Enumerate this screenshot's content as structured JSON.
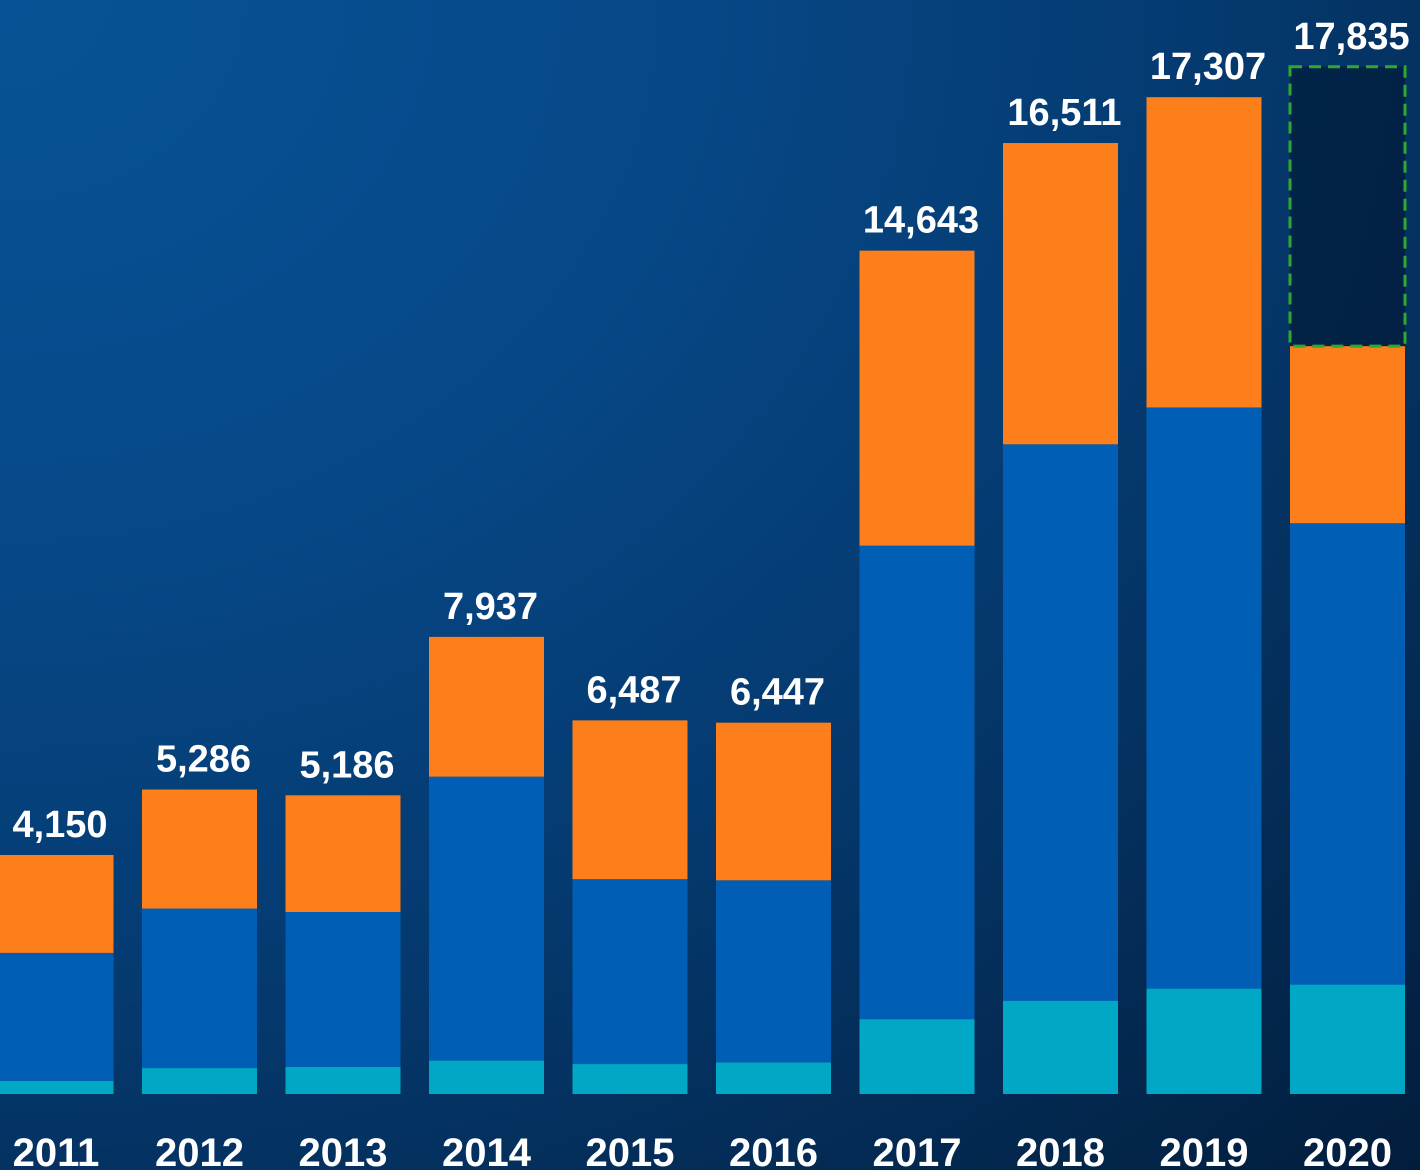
{
  "chart_data": {
    "type": "bar",
    "stacked": true,
    "categories": [
      "2011",
      "2012",
      "2013",
      "2014",
      "2015",
      "2016",
      "2017",
      "2018",
      "2019",
      "2020"
    ],
    "series": [
      {
        "color": "#00a8c6",
        "values": [
          230,
          450,
          470,
          580,
          520,
          550,
          1300,
          1620,
          1830,
          1900
        ]
      },
      {
        "color": "#005fb4",
        "values": [
          2220,
          2770,
          2690,
          4930,
          3210,
          3160,
          8220,
          9660,
          10090,
          8010
        ]
      },
      {
        "color": "#fd7f1c",
        "values": [
          1700,
          2066,
          2026,
          2427,
          2757,
          2737,
          5123,
          5231,
          5387,
          3075
        ]
      },
      {
        "color": "none",
        "outline": "#2ea82e",
        "values": [
          0,
          0,
          0,
          0,
          0,
          0,
          0,
          0,
          0,
          4850
        ]
      }
    ],
    "totals": [
      "4,150",
      "5,286",
      "5,186",
      "7,937",
      "6,487",
      "6,447",
      "14,643",
      "16,511",
      "17,307",
      "17,835"
    ],
    "ylim": [
      0,
      18300
    ],
    "grid": false,
    "legend": "none"
  }
}
